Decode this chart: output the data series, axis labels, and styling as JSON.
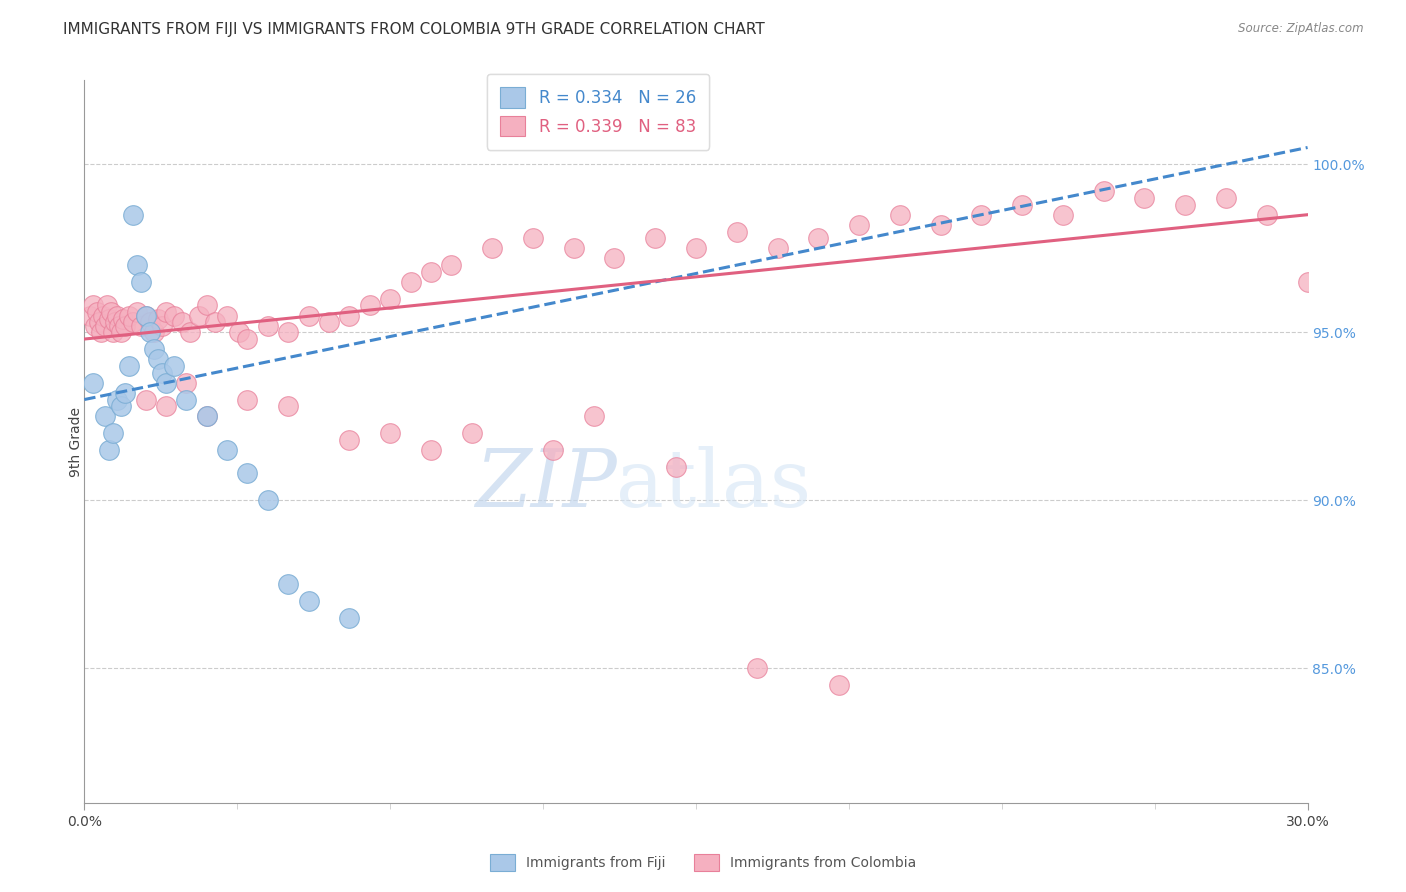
{
  "title": "IMMIGRANTS FROM FIJI VS IMMIGRANTS FROM COLOMBIA 9TH GRADE CORRELATION CHART",
  "source": "Source: ZipAtlas.com",
  "ylabel": "9th Grade",
  "xmin": 0.0,
  "xmax": 30.0,
  "ymin": 81.0,
  "ymax": 102.5,
  "yticks": [
    85.0,
    90.0,
    95.0,
    100.0
  ],
  "fiji_color": "#aac8e8",
  "fiji_edge_color": "#7aadd4",
  "colombia_color": "#f5b0c0",
  "colombia_edge_color": "#e8809a",
  "fiji_line_color": "#4488cc",
  "colombia_line_color": "#e06080",
  "right_axis_color": "#5599dd",
  "fiji_R": 0.334,
  "fiji_N": 26,
  "colombia_R": 0.339,
  "colombia_N": 83,
  "fiji_points_x": [
    0.2,
    0.5,
    0.6,
    0.7,
    0.8,
    0.9,
    1.0,
    1.1,
    1.2,
    1.3,
    1.4,
    1.5,
    1.6,
    1.7,
    1.8,
    1.9,
    2.0,
    2.2,
    2.5,
    3.0,
    3.5,
    4.0,
    4.5,
    5.0,
    5.5,
    6.5
  ],
  "fiji_points_y": [
    93.5,
    92.5,
    91.5,
    92.0,
    93.0,
    92.8,
    93.2,
    94.0,
    98.5,
    97.0,
    96.5,
    95.5,
    95.0,
    94.5,
    94.2,
    93.8,
    93.5,
    94.0,
    93.0,
    92.5,
    91.5,
    90.8,
    90.0,
    87.5,
    87.0,
    86.5
  ],
  "colombia_points_x": [
    0.15,
    0.2,
    0.25,
    0.3,
    0.35,
    0.4,
    0.45,
    0.5,
    0.55,
    0.6,
    0.65,
    0.7,
    0.75,
    0.8,
    0.85,
    0.9,
    0.95,
    1.0,
    1.1,
    1.2,
    1.3,
    1.4,
    1.5,
    1.6,
    1.7,
    1.8,
    1.9,
    2.0,
    2.2,
    2.4,
    2.6,
    2.8,
    3.0,
    3.2,
    3.5,
    3.8,
    4.0,
    4.5,
    5.0,
    5.5,
    6.0,
    6.5,
    7.0,
    7.5,
    8.0,
    8.5,
    9.0,
    10.0,
    11.0,
    12.0,
    13.0,
    14.0,
    15.0,
    16.0,
    17.0,
    18.0,
    19.0,
    20.0,
    21.0,
    22.0,
    23.0,
    24.0,
    25.0,
    26.0,
    27.0,
    28.0,
    29.0,
    30.0,
    1.5,
    2.0,
    2.5,
    3.0,
    4.0,
    5.0,
    6.5,
    7.5,
    8.5,
    9.5,
    11.5,
    12.5,
    14.5,
    16.5,
    18.5
  ],
  "colombia_points_y": [
    95.5,
    95.8,
    95.2,
    95.6,
    95.3,
    95.0,
    95.5,
    95.2,
    95.8,
    95.4,
    95.6,
    95.0,
    95.3,
    95.5,
    95.2,
    95.0,
    95.4,
    95.2,
    95.5,
    95.3,
    95.6,
    95.2,
    95.5,
    95.3,
    95.0,
    95.4,
    95.2,
    95.6,
    95.5,
    95.3,
    95.0,
    95.5,
    95.8,
    95.3,
    95.5,
    95.0,
    94.8,
    95.2,
    95.0,
    95.5,
    95.3,
    95.5,
    95.8,
    96.0,
    96.5,
    96.8,
    97.0,
    97.5,
    97.8,
    97.5,
    97.2,
    97.8,
    97.5,
    98.0,
    97.5,
    97.8,
    98.2,
    98.5,
    98.2,
    98.5,
    98.8,
    98.5,
    99.2,
    99.0,
    98.8,
    99.0,
    98.5,
    96.5,
    93.0,
    92.8,
    93.5,
    92.5,
    93.0,
    92.8,
    91.8,
    92.0,
    91.5,
    92.0,
    91.5,
    92.5,
    91.0,
    85.0,
    84.5
  ],
  "watermark_zip": "ZIP",
  "watermark_atlas": "atlas",
  "background_color": "#ffffff",
  "grid_color": "#cccccc",
  "title_fontsize": 11,
  "axis_label_fontsize": 10,
  "tick_fontsize": 10,
  "legend_fontsize": 12
}
